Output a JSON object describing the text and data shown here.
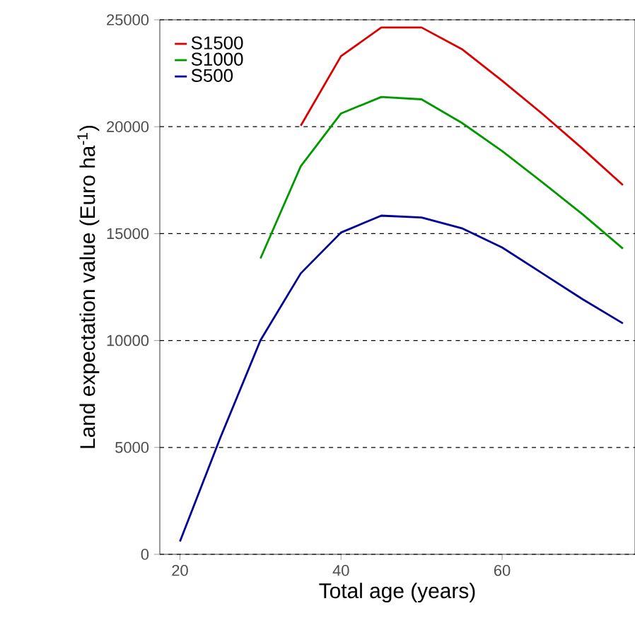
{
  "chart_data": {
    "type": "line",
    "xlabel": "Total age (years)",
    "ylabel": "Land expectation value (Euro ha$^{-1}$)",
    "xlim": [
      17.5,
      76.5
    ],
    "ylim": [
      0,
      25000
    ],
    "xticks": [
      20,
      40,
      60
    ],
    "yticks": [
      0,
      5000,
      10000,
      15000,
      20000,
      25000
    ],
    "grid": "y",
    "legend": "top left",
    "marker": "none",
    "line_style": "solid",
    "series": [
      {
        "name": "S1500",
        "color": "#dd0000",
        "x": [
          35,
          40,
          45,
          50,
          55,
          60,
          65,
          70,
          75
        ],
        "values": [
          20050,
          23300,
          24640,
          24640,
          23630,
          22150,
          20600,
          18970,
          17270
        ]
      },
      {
        "name": "S1000",
        "color": "#009900",
        "x": [
          30,
          35,
          40,
          45,
          50,
          55,
          60,
          65,
          70,
          75
        ],
        "values": [
          13840,
          18150,
          20620,
          21390,
          21280,
          20180,
          18860,
          17400,
          15900,
          14300
        ]
      },
      {
        "name": "S500",
        "color": "#000099",
        "x": [
          20,
          25,
          30,
          35,
          40,
          45,
          50,
          55,
          60,
          65,
          70,
          75
        ],
        "values": [
          600,
          5440,
          10010,
          13140,
          15050,
          15840,
          15750,
          15250,
          14350,
          13140,
          11930,
          10800
        ]
      }
    ]
  }
}
